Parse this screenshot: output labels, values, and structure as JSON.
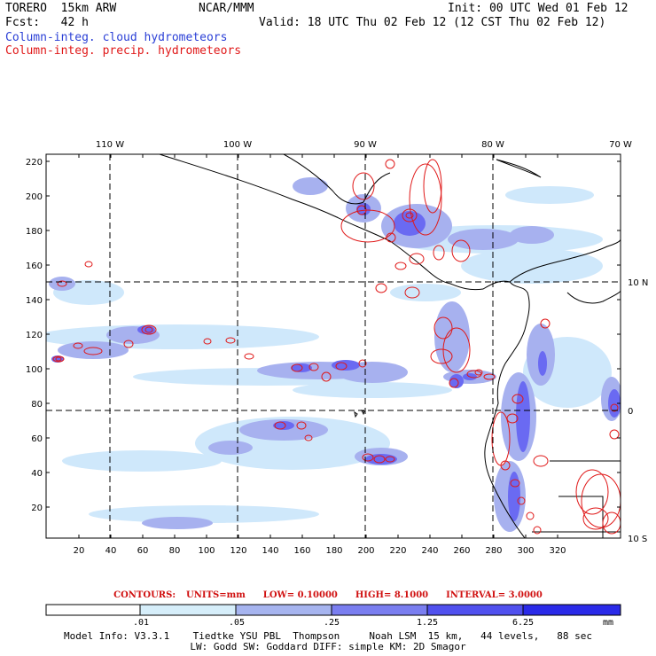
{
  "header": {
    "model": "TORERO  15km ARW",
    "producer": "NCAR/MMM",
    "init": "Init: 00 UTC Wed 01 Feb 12",
    "fcst": "Fcst:   42 h",
    "valid": "Valid: 18 UTC Thu 02 Feb 12 (12 CST Thu 02 Feb 12)",
    "field_blue": "Column-integ. cloud hydrometeors",
    "field_red": "Column-integ. precip. hydrometeors"
  },
  "colors": {
    "cloud_fill": "#6a6af2",
    "cloud_light": "#cfe8fb",
    "cloud_mid": "#a7b1ef",
    "precip_contour": "#e01818",
    "grid": "#000000"
  },
  "map": {
    "lon_labels": [
      "110 W",
      "100 W",
      "90 W",
      "80 W",
      "70 W"
    ],
    "lat_labels": [
      "10 N",
      "0",
      "10 S"
    ],
    "y_ticks": [
      "220",
      "200",
      "180",
      "160",
      "140",
      "120",
      "100",
      "80",
      "60",
      "40",
      "20"
    ],
    "x_ticks": [
      "20",
      "40",
      "60",
      "80",
      "100",
      "120",
      "140",
      "160",
      "180",
      "200",
      "220",
      "240",
      "260",
      "280",
      "300",
      "320"
    ]
  },
  "contour_info": {
    "label": "CONTOURS:",
    "units": "UNITS=mm",
    "low": "LOW= 0.10000",
    "high": "HIGH=  8.1000",
    "interval": "INTERVAL= 3.0000"
  },
  "colorbar": {
    "levels": [
      ".01",
      ".05",
      ".25",
      "1.25",
      "6.25"
    ],
    "unit": "mm",
    "colors": [
      "#ffffff",
      "#d6eefa",
      "#a6b4ef",
      "#7a7ef0",
      "#5050ee",
      "#2a2ae8"
    ]
  },
  "footer": {
    "line1": "Model Info: V3.3.1    Tiedtke YSU PBL  Thompson     Noah LSM  15 km,   44 levels,   88 sec",
    "line2": "LW: Godd SW: Goddard DIFF: simple KM: 2D Smagor"
  }
}
